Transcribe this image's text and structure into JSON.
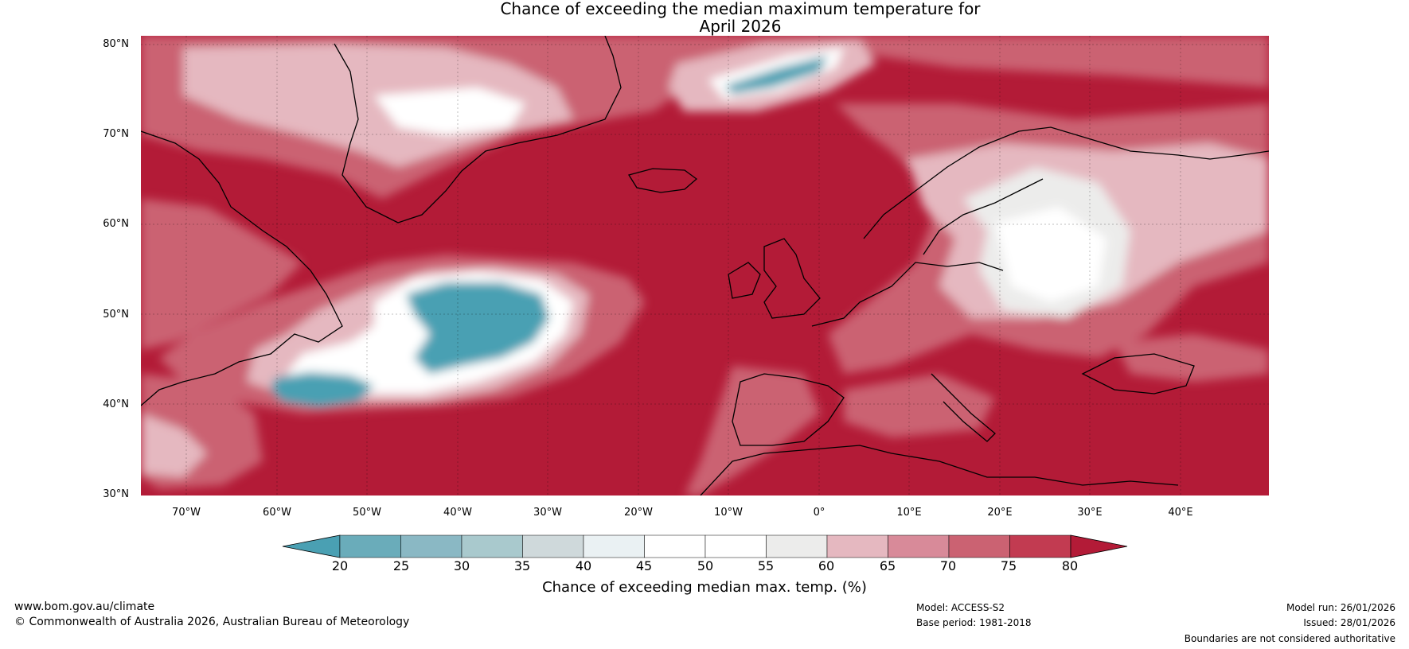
{
  "title_line1": "Chance of exceeding the median maximum temperature for",
  "title_line2": "April 2026",
  "lat_labels": [
    "80°N",
    "70°N",
    "60°N",
    "50°N",
    "40°N",
    "30°N"
  ],
  "lon_labels": [
    "70°W",
    "60°W",
    "50°W",
    "40°W",
    "30°W",
    "20°W",
    "10°W",
    "0°",
    "10°E",
    "20°E",
    "30°E",
    "40°E"
  ],
  "colorbar": {
    "title": "Chance of exceeding median max. temp. (%)",
    "ticks": [
      "20",
      "25",
      "30",
      "35",
      "40",
      "45",
      "50",
      "55",
      "60",
      "65",
      "70",
      "75",
      "80"
    ],
    "colors": [
      "#4aa0b3",
      "#6aacba",
      "#8ab8c4",
      "#a9c9cd",
      "#cfd9db",
      "#eaf1f3",
      "#ffffff",
      "#ffffff",
      "#ececeb",
      "#e5b8c0",
      "#d88a99",
      "#cb6272",
      "#c23b51",
      "#b31b37"
    ]
  },
  "map_colors": {
    "high": "#b31b37",
    "mid_high": "#cb6272",
    "mid": "#e5b8c0",
    "neutral": "#ffffff",
    "low": "#4aa0b3",
    "coast": "#000000",
    "border": "#808080"
  },
  "footer": {
    "website": "www.bom.gov.au/climate",
    "copyright": "© Commonwealth of Australia 2026, Australian Bureau of Meteorology",
    "model": "Model: ACCESS-S2",
    "base_period": "Base period: 1981-2018",
    "model_run": "Model run: 26/01/2026",
    "issued": "Issued: 28/01/2026",
    "disclaimer": "Boundaries are not considered authoritative"
  }
}
